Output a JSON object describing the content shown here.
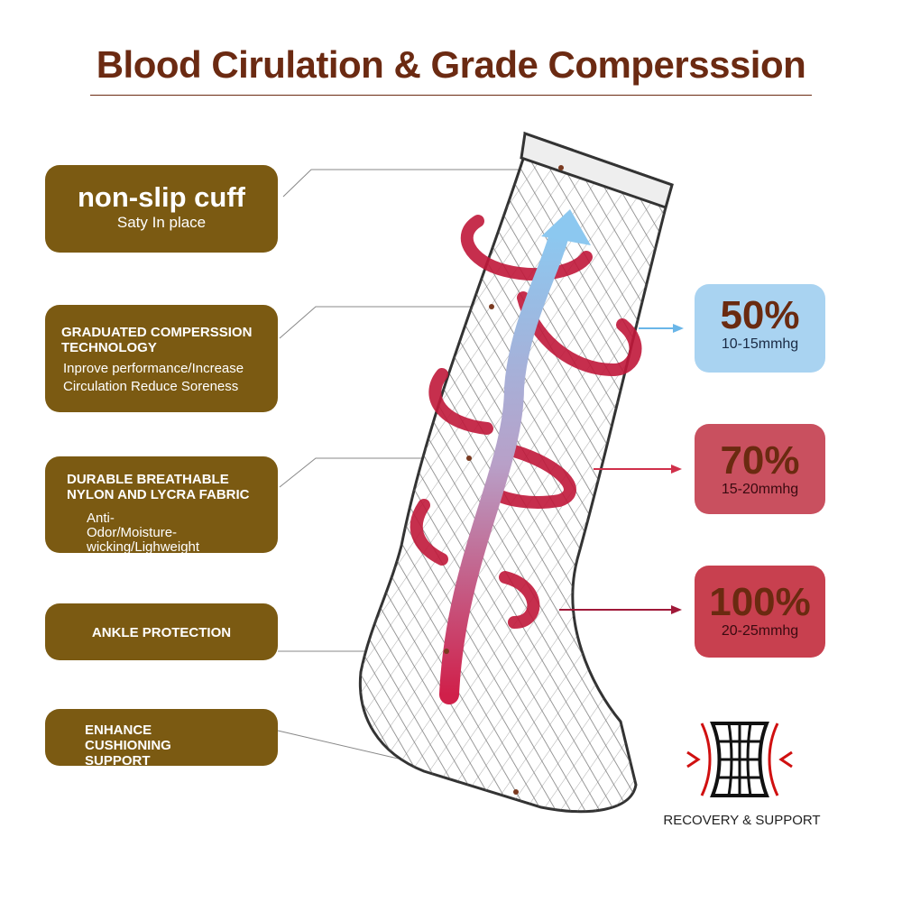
{
  "title": "Blood Cirulation & Grade Compersssion",
  "features": [
    {
      "heading": "non-slip cuff",
      "text": "Saty In place"
    },
    {
      "heading": "GRADUATED COMPERSSION TECHNOLOGY",
      "text": "Inprove performance/Increase Circulation Reduce Soreness"
    },
    {
      "heading": "DURABLE BREATHABLE NYLON AND LYCRA FABRIC",
      "text": "Anti-Odor/Moisture-wicking/Lighweight"
    },
    {
      "heading": "ANKLE PROTECTION"
    },
    {
      "heading": "ENHANCE CUSHIONING SUPPORT"
    }
  ],
  "pressure_levels": [
    {
      "percent": "50%",
      "range": "10-15mmhg",
      "color": "#a9d3f1"
    },
    {
      "percent": "70%",
      "range": "15-20mmhg",
      "color": "#c9505f"
    },
    {
      "percent": "100%",
      "range": "20-25mmhg",
      "color": "#c8404f"
    }
  ],
  "recovery": {
    "label": "RECOVERY & SUPPORT",
    "icon": "compression-grid-icon"
  },
  "colors": {
    "title": "#6b2a12",
    "feature_box": "#7b5a12",
    "flow_top": "#8cc8f0",
    "flow_bottom": "#d0204a"
  }
}
